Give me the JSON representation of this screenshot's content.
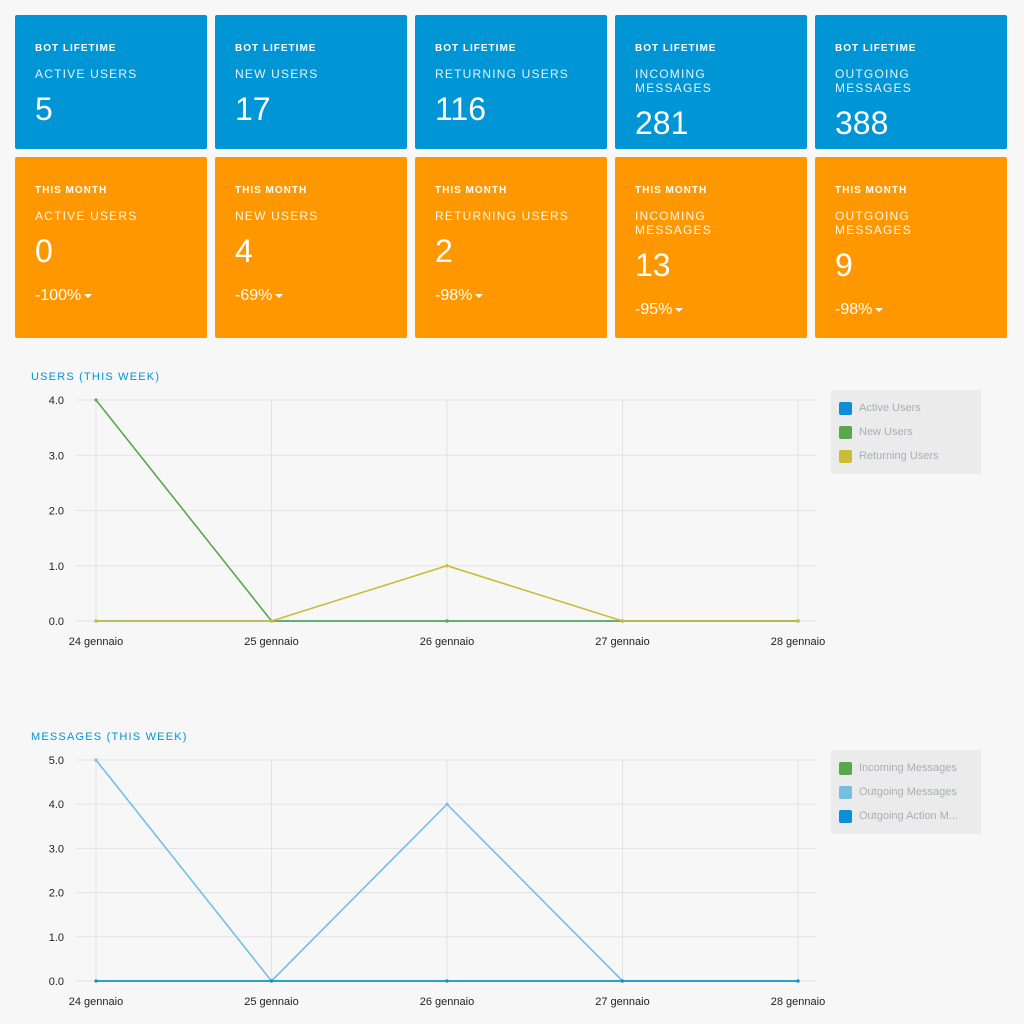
{
  "cards": {
    "lifetime": [
      {
        "category": "BOT LIFETIME",
        "metric": "ACTIVE USERS",
        "value": "5"
      },
      {
        "category": "BOT LIFETIME",
        "metric": "NEW USERS",
        "value": "17"
      },
      {
        "category": "BOT LIFETIME",
        "metric": "RETURNING USERS",
        "value": "116"
      },
      {
        "category": "BOT LIFETIME",
        "metric": "INCOMING MESSAGES",
        "value": "281"
      },
      {
        "category": "BOT LIFETIME",
        "metric": "OUTGOING MESSAGES",
        "value": "388"
      }
    ],
    "month": [
      {
        "category": "THIS MONTH",
        "metric": "ACTIVE USERS",
        "value": "0",
        "change": "-100%"
      },
      {
        "category": "THIS MONTH",
        "metric": "NEW USERS",
        "value": "4",
        "change": "-69%"
      },
      {
        "category": "THIS MONTH",
        "metric": "RETURNING USERS",
        "value": "2",
        "change": "-98%"
      },
      {
        "category": "THIS MONTH",
        "metric": "INCOMING MESSAGES",
        "value": "13",
        "change": "-95%"
      },
      {
        "category": "THIS MONTH",
        "metric": "OUTGOING MESSAGES",
        "value": "9",
        "change": "-98%"
      }
    ]
  },
  "chart_data": [
    {
      "type": "line",
      "title": "USERS (THIS WEEK)",
      "x": [
        "24 gennaio",
        "25 gennaio",
        "26 gennaio",
        "27 gennaio",
        "28 gennaio"
      ],
      "ylim": [
        0,
        4
      ],
      "yticks": [
        "0.0",
        "1.0",
        "2.0",
        "3.0",
        "4.0"
      ],
      "grid": true,
      "legend_position": "right",
      "series": [
        {
          "name": "Active Users",
          "color": "#0b8fd8",
          "values": [
            0,
            0,
            0,
            0,
            0
          ]
        },
        {
          "name": "New Users",
          "color": "#5aa84d",
          "values": [
            4,
            0,
            0,
            0,
            0
          ]
        },
        {
          "name": "Returning Users",
          "color": "#cbbb35",
          "values": [
            0,
            0,
            1,
            0,
            0
          ]
        }
      ]
    },
    {
      "type": "line",
      "title": "MESSAGES (THIS WEEK)",
      "x": [
        "24 gennaio",
        "25 gennaio",
        "26 gennaio",
        "27 gennaio",
        "28 gennaio"
      ],
      "ylim": [
        0,
        5
      ],
      "yticks": [
        "0.0",
        "1.0",
        "2.0",
        "3.0",
        "4.0",
        "5.0"
      ],
      "grid": true,
      "legend_position": "right",
      "series": [
        {
          "name": "Incoming Messages",
          "color": "#5aa84d",
          "values": [
            0,
            0,
            0,
            0,
            0
          ]
        },
        {
          "name": "Outgoing Messages",
          "color": "#74c0e0",
          "values": [
            5,
            0,
            4,
            0,
            0
          ]
        },
        {
          "name": "Outgoing Action M...",
          "color": "#0b8fd8",
          "values": [
            0,
            0,
            0,
            0,
            0
          ]
        }
      ]
    }
  ]
}
